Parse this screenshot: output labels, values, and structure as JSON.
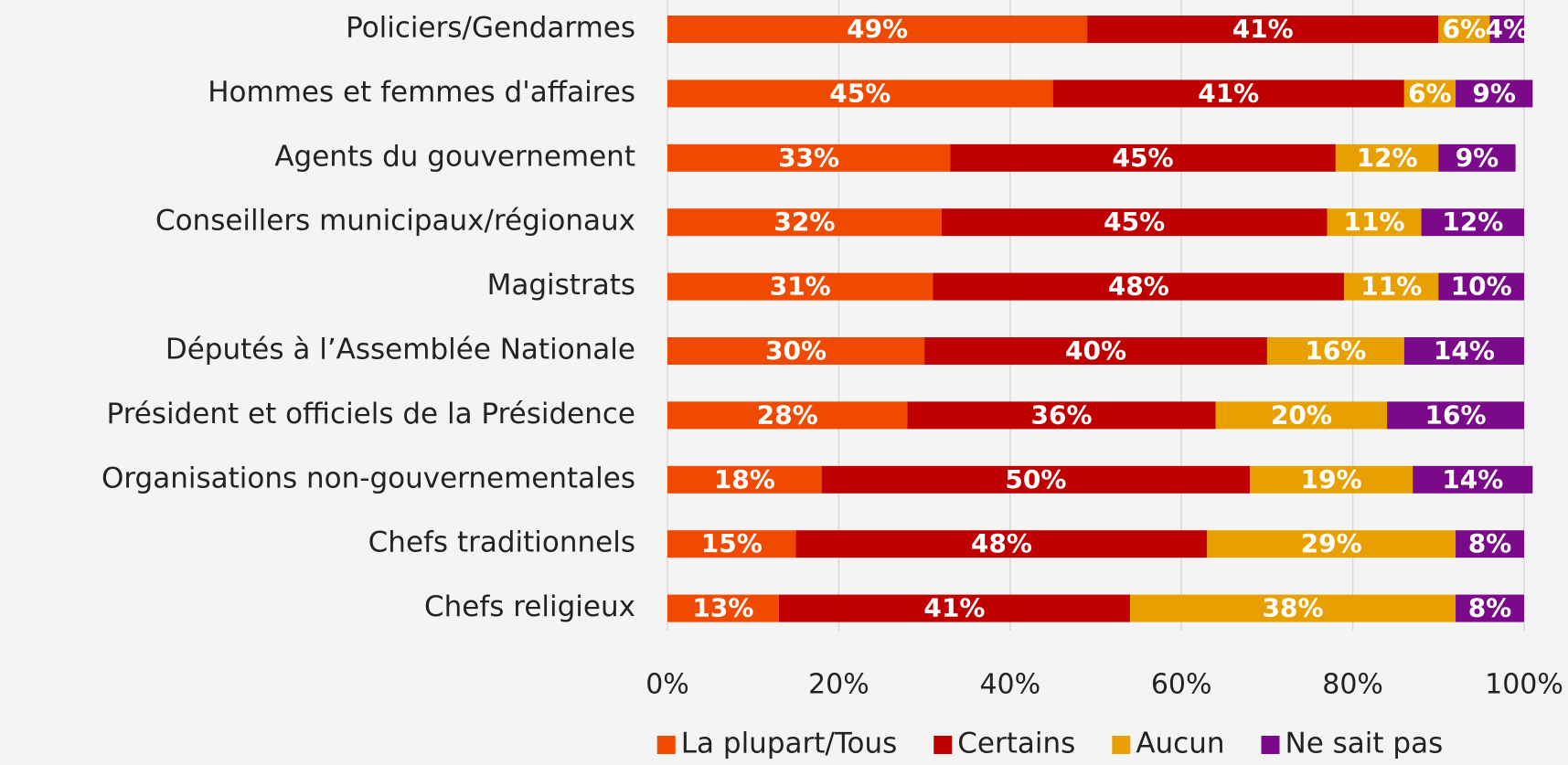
{
  "chart_data": {
    "type": "stacked_barh",
    "categories": [
      "Policiers/Gendarmes",
      "Hommes et femmes d'affaires",
      "Agents du gouvernement",
      "Conseillers municipaux/régionaux",
      "Magistrats",
      "Députés à l’Assemblée Nationale",
      "Président et officiels de la Présidence",
      "Organisations non-gouvernementales",
      "Chefs traditionnels",
      "Chefs religieux"
    ],
    "series": [
      {
        "name": "La plupart/Tous",
        "color": "#f04a00",
        "values": [
          49,
          45,
          33,
          32,
          31,
          30,
          28,
          18,
          15,
          13
        ],
        "value_labels": [
          "49%",
          "45%",
          "33%",
          "32%",
          "31%",
          "30%",
          "28%",
          "18%",
          "15%",
          "13%"
        ]
      },
      {
        "name": "Certains",
        "color": "#c00000",
        "values": [
          41,
          41,
          45,
          45,
          48,
          40,
          36,
          50,
          48,
          41
        ],
        "value_labels": [
          "41%",
          "41%",
          "45%",
          "45%",
          "48%",
          "40%",
          "36%",
          "50%",
          "48%",
          "41%"
        ]
      },
      {
        "name": "Aucun",
        "color": "#e8a000",
        "values": [
          6,
          6,
          12,
          11,
          11,
          16,
          20,
          19,
          29,
          38
        ],
        "value_labels": [
          "6%",
          "6%",
          "12%",
          "11%",
          "11%",
          "16%",
          "20%",
          "19%",
          "29%",
          "38%"
        ]
      },
      {
        "name": "Ne sait pas",
        "color": "#7b0a8a",
        "values": [
          4,
          9,
          9,
          12,
          10,
          14,
          16,
          14,
          8,
          8
        ],
        "value_labels": [
          "4%",
          "9%",
          "9%",
          "12%",
          "10%",
          "14%",
          "16%",
          "14%",
          "8%",
          "8%"
        ]
      }
    ],
    "xlim": [
      0,
      100
    ],
    "xticks": [
      {
        "value": 0,
        "label": "0%"
      },
      {
        "value": 20,
        "label": "20%"
      },
      {
        "value": 40,
        "label": "40%"
      },
      {
        "value": 60,
        "label": "60%"
      },
      {
        "value": 80,
        "label": "80%"
      },
      {
        "value": 100,
        "label": "100%"
      }
    ],
    "grid": true,
    "legend": "bottom"
  }
}
